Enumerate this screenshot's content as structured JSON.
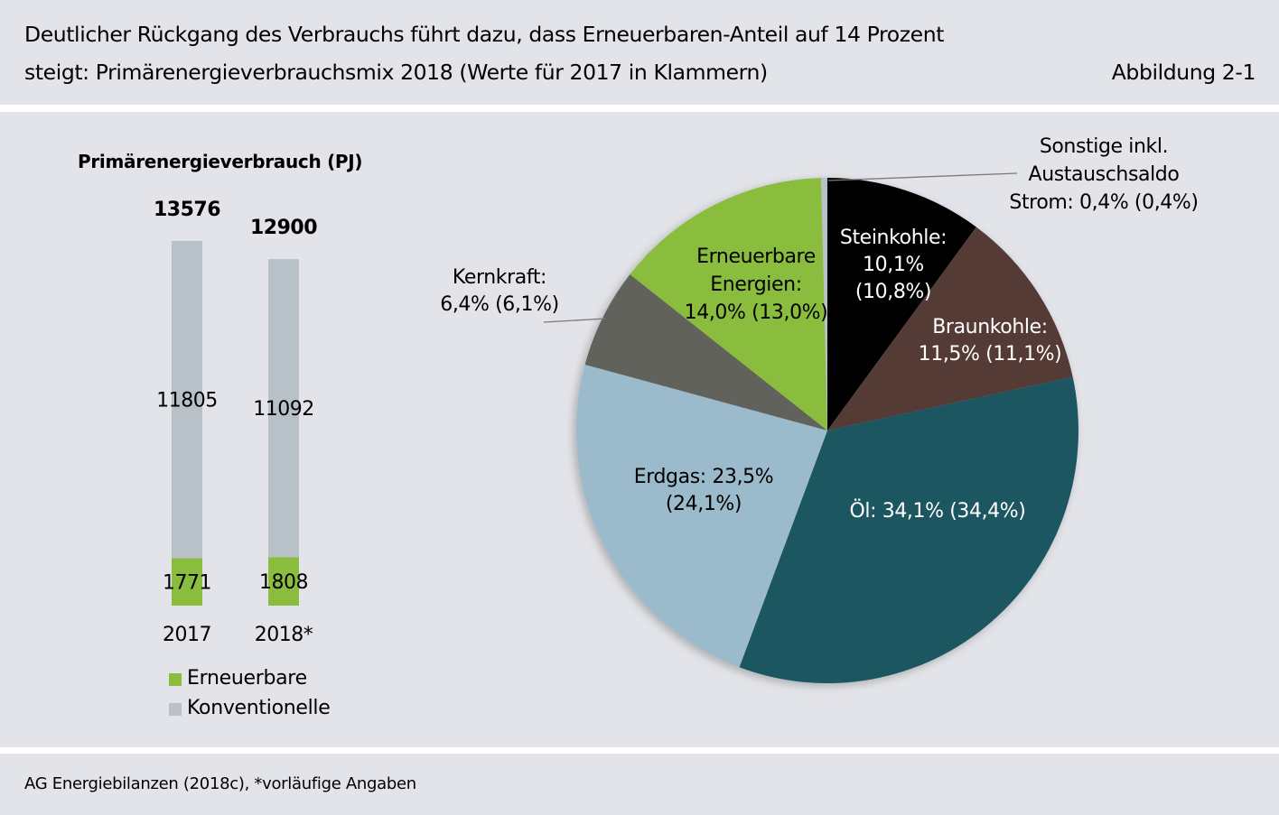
{
  "header": {
    "title_line1": "Deutlicher Rückgang des Verbrauchs führt dazu, dass Erneuerbaren-Anteil auf 14 Prozent",
    "title_line2": "steigt: Primärenergieverbrauchsmix 2018 (Werte für 2017 in Klammern)",
    "figure_number": "Abbildung 2-1"
  },
  "footer": {
    "source": "AG Energiebilanzen (2018c), *vorläufige Angaben"
  },
  "colors": {
    "background": "#e3e4e9",
    "erneuerbare": "#8abd3e",
    "konventionelle": "#b8c0c8",
    "steinkohle": "#000000",
    "braunkohle": "#543a36",
    "oel": "#1e5660",
    "erdgas": "#9bbbcc",
    "kernkraft": "#62625d",
    "sonstige": "#b8c0c8"
  },
  "chart_data": [
    {
      "type": "bar",
      "stacked": true,
      "title": "Primärenergieverbrauch (PJ)",
      "categories": [
        "2017",
        "2018*"
      ],
      "totals": [
        13576,
        12900
      ],
      "total_labels": [
        "13576",
        "12900"
      ],
      "series": [
        {
          "name": "Erneuerbare",
          "color_key": "erneuerbare",
          "values": [
            1771,
            1808
          ],
          "labels": [
            "1771",
            "1808"
          ]
        },
        {
          "name": "Konventionelle",
          "color_key": "konventionelle",
          "values": [
            11805,
            11092
          ],
          "labels": [
            "11805",
            "11092"
          ]
        }
      ],
      "ylim": [
        0,
        13576
      ],
      "grid": false,
      "axes_visible": false,
      "legend": {
        "placement": "bottom-left",
        "entries": [
          "Erneuerbare",
          "Konventionelle"
        ]
      }
    },
    {
      "type": "pie",
      "start": "top",
      "direction": "clockwise",
      "year": "2018",
      "comparison_year": "2017",
      "slices": [
        {
          "key": "steinkohle",
          "label_lines": [
            "Steinkohle:",
            "10,1%",
            "(10,8%)"
          ],
          "value": 10.1,
          "value_prev": 10.8,
          "label_color": "#ffffff",
          "label_position": "inside"
        },
        {
          "key": "braunkohle",
          "label_lines": [
            "Braunkohle:",
            "11,5% (11,1%)"
          ],
          "value": 11.5,
          "value_prev": 11.1,
          "label_color": "#ffffff",
          "label_position": "inside"
        },
        {
          "key": "oel",
          "label_lines": [
            "Öl: 34,1% (34,4%)"
          ],
          "value": 34.1,
          "value_prev": 34.4,
          "label_color": "#ffffff",
          "label_position": "inside"
        },
        {
          "key": "erdgas",
          "label_lines": [
            "Erdgas: 23,5%",
            "(24,1%)"
          ],
          "value": 23.5,
          "value_prev": 24.1,
          "label_color": "#000000",
          "label_position": "inside"
        },
        {
          "key": "kernkraft",
          "label_lines": [
            "Kernkraft:",
            "6,4% (6,1%)"
          ],
          "value": 6.4,
          "value_prev": 6.1,
          "label_color": "#000000",
          "label_position": "outside-left"
        },
        {
          "key": "erneuerbare",
          "label_lines": [
            "Erneuerbare",
            "Energien:",
            "14,0% (13,0%)"
          ],
          "value": 14.0,
          "value_prev": 13.0,
          "label_color": "#000000",
          "label_position": "inside"
        },
        {
          "key": "sonstige",
          "label_lines": [
            "Sonstige inkl.",
            "Austauschsaldo",
            "Strom: 0,4% (0,4%)"
          ],
          "value": 0.4,
          "value_prev": 0.4,
          "label_color": "#000000",
          "label_position": "outside-top-right"
        }
      ]
    }
  ]
}
